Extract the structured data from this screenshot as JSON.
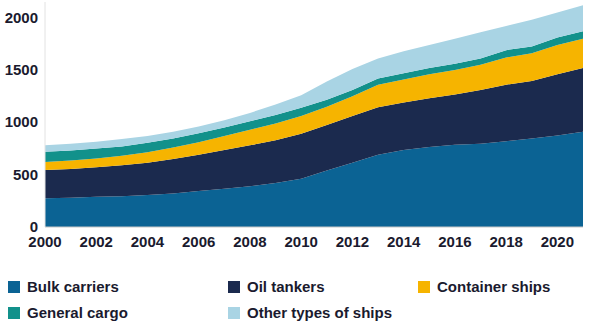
{
  "chart_data": {
    "type": "area",
    "stacked": true,
    "grid": false,
    "x": [
      2000,
      2001,
      2002,
      2003,
      2004,
      2005,
      2006,
      2007,
      2008,
      2009,
      2010,
      2011,
      2012,
      2013,
      2014,
      2015,
      2016,
      2017,
      2018,
      2019,
      2020,
      2021
    ],
    "xlim": [
      2000,
      2021
    ],
    "xticks": [
      2000,
      2002,
      2004,
      2006,
      2008,
      2010,
      2012,
      2014,
      2016,
      2018,
      2020
    ],
    "ylim": [
      0,
      2150
    ],
    "yticks": [
      0,
      500,
      1000,
      1500,
      2000
    ],
    "series": [
      {
        "name": "Bulk carriers",
        "color": "#0b6394",
        "values": [
          275,
          280,
          290,
          295,
          305,
          320,
          345,
          365,
          390,
          420,
          460,
          540,
          615,
          690,
          735,
          765,
          785,
          795,
          820,
          845,
          875,
          910
        ]
      },
      {
        "name": "Oil tankers",
        "color": "#1b2a4e",
        "values": [
          270,
          275,
          280,
          295,
          310,
          330,
          345,
          370,
          390,
          410,
          430,
          435,
          445,
          455,
          455,
          465,
          480,
          515,
          540,
          550,
          585,
          610
        ]
      },
      {
        "name": "Container ships",
        "color": "#f6b400",
        "values": [
          75,
          80,
          85,
          90,
          100,
          110,
          120,
          135,
          150,
          160,
          170,
          175,
          190,
          215,
          220,
          230,
          235,
          240,
          260,
          265,
          280,
          280
        ]
      },
      {
        "name": "General cargo",
        "color": "#12918b",
        "values": [
          100,
          95,
          95,
          90,
          90,
          85,
          85,
          80,
          80,
          80,
          80,
          65,
          60,
          60,
          60,
          60,
          60,
          60,
          70,
          65,
          70,
          70
        ]
      },
      {
        "name": "Other types of ships",
        "color": "#a9d4e4",
        "values": [
          60,
          65,
          65,
          70,
          65,
          65,
          65,
          70,
          80,
          100,
          120,
          175,
          200,
          190,
          210,
          220,
          240,
          250,
          230,
          255,
          240,
          250
        ]
      }
    ]
  }
}
